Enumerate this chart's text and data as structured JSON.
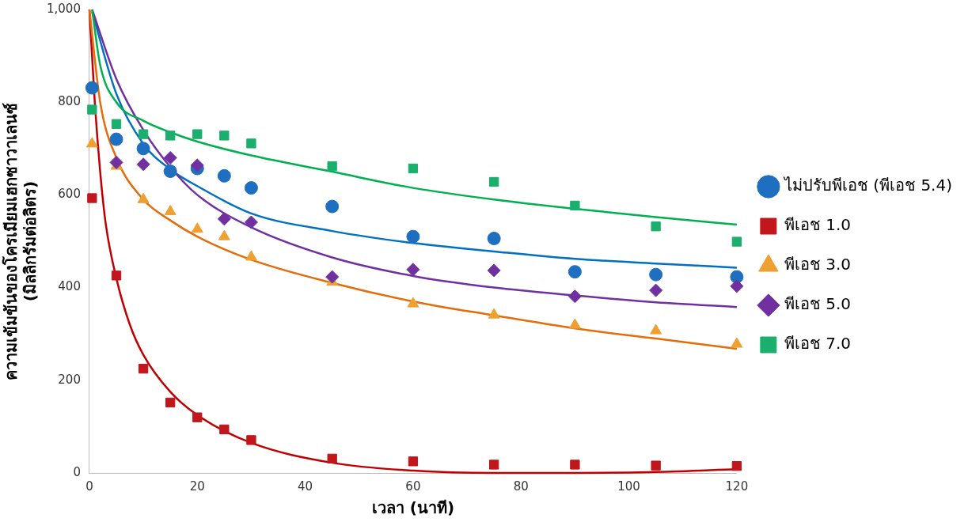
{
  "chart_data": {
    "type": "scatter",
    "xlabel": "เวลา (นาที)",
    "ylabel": "ความเข้มข้นของโครเมียมเฮกซาวาเลนซ์\n(มิลลิกรัมต่อลิตร)",
    "x": [
      0.5,
      5,
      10,
      15,
      20,
      25,
      30,
      45,
      60,
      75,
      90,
      105,
      120
    ],
    "series": [
      {
        "name": "ไม่ปรับพีเอช (พีเอช 5.4)",
        "marker": "circle",
        "color": "#1f6fc0",
        "values": [
          831,
          720,
          700,
          651,
          657,
          641,
          615,
          575,
          510,
          506,
          434,
          428,
          423
        ]
      },
      {
        "name": "พีเอช 1.0",
        "marker": "square",
        "color": "#c0161c",
        "values": [
          593,
          426,
          225,
          152,
          120,
          94,
          71,
          31,
          25,
          18,
          18,
          16,
          15
        ]
      },
      {
        "name": "พีเอช 3.0",
        "marker": "triangle",
        "color": "#f0a030",
        "values": [
          710,
          662,
          590,
          564,
          526,
          510,
          466,
          412,
          365,
          341,
          319,
          307,
          278
        ]
      },
      {
        "name": "พีเอช 5.0",
        "marker": "diamond",
        "color": "#7030a0",
        "values": [
          null,
          670,
          666,
          680,
          664,
          548,
          541,
          423,
          439,
          437,
          381,
          394,
          403
        ]
      },
      {
        "name": "พีเอช 7.0",
        "marker": "square",
        "color": "#1aaf6c",
        "values": [
          784,
          753,
          731,
          728,
          731,
          728,
          711,
          662,
          657,
          628,
          577,
          532,
          499
        ]
      },
      {
        "type": "line",
        "marker": "none",
        "color": "#0070c0",
        "x": [
          0.5,
          5,
          10,
          15,
          20,
          30,
          45,
          60,
          75,
          90,
          105,
          120
        ],
        "values": [
          995,
          818,
          710,
          655,
          619,
          560,
          522,
          496,
          478,
          462,
          452,
          443
        ]
      },
      {
        "type": "line",
        "marker": "none",
        "color": "#c00000",
        "x": [
          0,
          1,
          2,
          3,
          5,
          7.5,
          10,
          15,
          20,
          30,
          45,
          60,
          75,
          90,
          105,
          120
        ],
        "values": [
          1000,
          800,
          650,
          540,
          420,
          320,
          255,
          175,
          125,
          65,
          22,
          5,
          0,
          0,
          2,
          8
        ]
      },
      {
        "type": "line",
        "marker": "none",
        "color": "#e46c0a",
        "x": [
          0,
          2,
          5,
          10,
          15,
          20,
          30,
          45,
          60,
          75,
          90,
          105,
          120
        ],
        "values": [
          1000,
          800,
          680,
          590,
          545,
          510,
          460,
          410,
          370,
          340,
          312,
          290,
          268
        ]
      },
      {
        "type": "line",
        "marker": "none",
        "color": "#7030a0",
        "x": [
          0.5,
          5,
          10,
          15,
          20,
          30,
          45,
          60,
          75,
          90,
          105,
          120
        ],
        "values": [
          1000,
          850,
          740,
          660,
          600,
          530,
          465,
          425,
          400,
          383,
          368,
          358
        ]
      },
      {
        "type": "line",
        "marker": "none",
        "color": "#00b050",
        "x": [
          0.5,
          2,
          5,
          10,
          15,
          20,
          30,
          45,
          60,
          75,
          90,
          105,
          120
        ],
        "values": [
          1000,
          880,
          800,
          760,
          735,
          715,
          685,
          650,
          615,
          590,
          570,
          552,
          536
        ]
      }
    ],
    "xlim": [
      0,
      120
    ],
    "xticks": [
      0,
      20,
      40,
      60,
      80,
      100,
      120
    ],
    "ylim": [
      0,
      1000
    ],
    "yticks": [
      0,
      200,
      400,
      600,
      800,
      {
        "value": 1000,
        "label": "1,000"
      }
    ],
    "grid": false,
    "legend": "right"
  }
}
